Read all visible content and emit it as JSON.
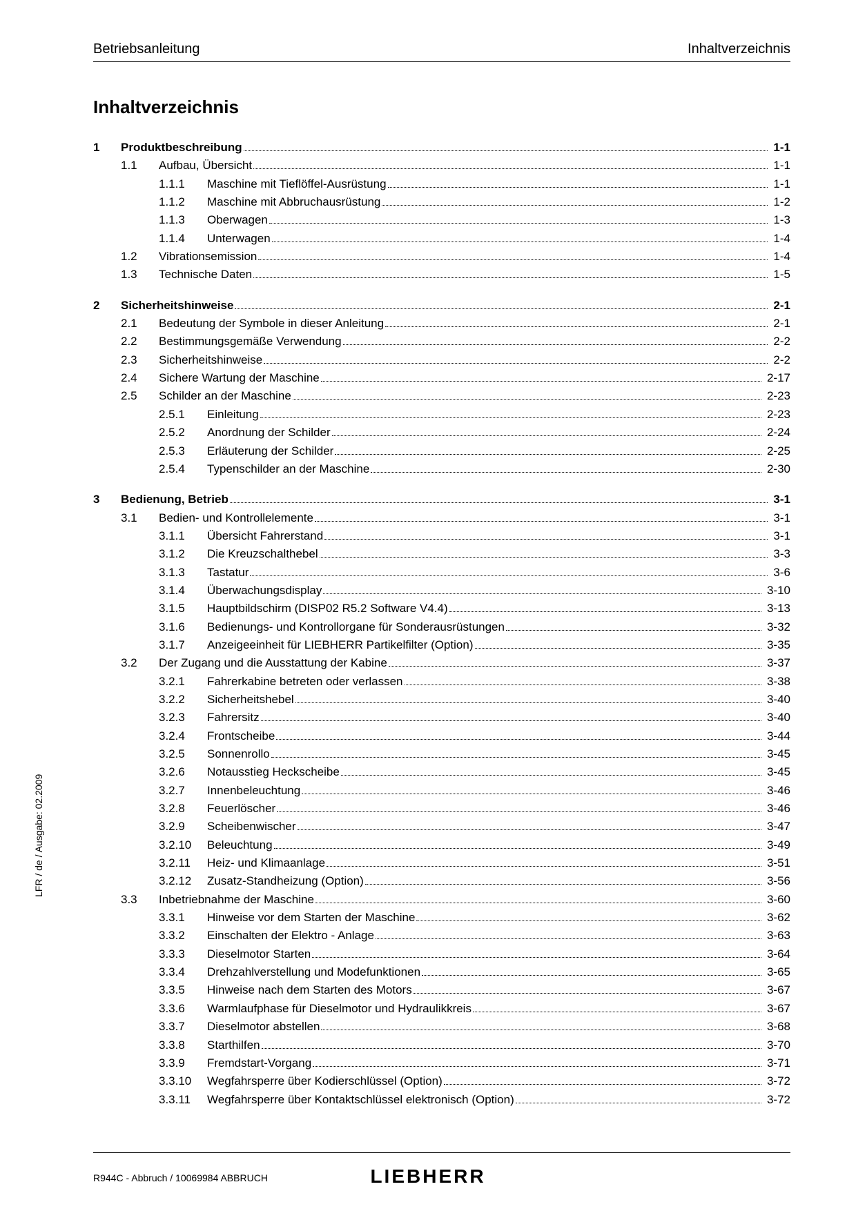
{
  "header": {
    "left": "Betriebsanleitung",
    "right": "Inhaltverzeichnis"
  },
  "title": "Inhaltverzeichnis",
  "side_text": "LFR / de / Ausgabe: 02.2009",
  "footer_text": "R944C - Abbruch / 10069984 ABBRUCH",
  "logo": "LIEBHERR",
  "toc": [
    {
      "level": 1,
      "num": "1",
      "label": "Produktbeschreibung",
      "page": "1-1",
      "bold": true
    },
    {
      "level": 2,
      "num": "1.1",
      "label": "Aufbau, Übersicht",
      "page": "1-1"
    },
    {
      "level": 3,
      "num": "1.1.1",
      "label": "Maschine mit Tieflöffel-Ausrüstung",
      "page": "1-1"
    },
    {
      "level": 3,
      "num": "1.1.2",
      "label": "Maschine mit Abbruchausrüstung",
      "page": "1-2"
    },
    {
      "level": 3,
      "num": "1.1.3",
      "label": "Oberwagen",
      "page": "1-3"
    },
    {
      "level": 3,
      "num": "1.1.4",
      "label": "Unterwagen",
      "page": "1-4"
    },
    {
      "level": 2,
      "num": "1.2",
      "label": "Vibrationsemission",
      "page": "1-4"
    },
    {
      "level": 2,
      "num": "1.3",
      "label": "Technische Daten",
      "page": "1-5"
    },
    {
      "level": 1,
      "num": "2",
      "label": "Sicherheitshinweise",
      "page": "2-1",
      "bold": true,
      "gap": true
    },
    {
      "level": 2,
      "num": "2.1",
      "label": "Bedeutung der Symbole in dieser Anleitung",
      "page": "2-1"
    },
    {
      "level": 2,
      "num": "2.2",
      "label": "Bestimmungsgemäße Verwendung",
      "page": "2-2"
    },
    {
      "level": 2,
      "num": "2.3",
      "label": "Sicherheitshinweise",
      "page": "2-2"
    },
    {
      "level": 2,
      "num": "2.4",
      "label": "Sichere Wartung der Maschine",
      "page": "2-17"
    },
    {
      "level": 2,
      "num": "2.5",
      "label": "Schilder an der Maschine",
      "page": "2-23"
    },
    {
      "level": 3,
      "num": "2.5.1",
      "label": "Einleitung",
      "page": "2-23"
    },
    {
      "level": 3,
      "num": "2.5.2",
      "label": "Anordnung der Schilder",
      "page": "2-24"
    },
    {
      "level": 3,
      "num": "2.5.3",
      "label": "Erläuterung der Schilder",
      "page": "2-25"
    },
    {
      "level": 3,
      "num": "2.5.4",
      "label": "Typenschilder an der Maschine",
      "page": "2-30"
    },
    {
      "level": 1,
      "num": "3",
      "label": "Bedienung, Betrieb",
      "page": "3-1",
      "bold": true,
      "gap": true
    },
    {
      "level": 2,
      "num": "3.1",
      "label": "Bedien- und Kontrollelemente",
      "page": "3-1"
    },
    {
      "level": 3,
      "num": "3.1.1",
      "label": "Übersicht Fahrerstand",
      "page": "3-1"
    },
    {
      "level": 3,
      "num": "3.1.2",
      "label": "Die Kreuzschalthebel",
      "page": "3-3"
    },
    {
      "level": 3,
      "num": "3.1.3",
      "label": "Tastatur",
      "page": "3-6"
    },
    {
      "level": 3,
      "num": "3.1.4",
      "label": "Überwachungsdisplay",
      "page": "3-10"
    },
    {
      "level": 3,
      "num": "3.1.5",
      "label": "Hauptbildschirm (DISP02 R5.2 Software V4.4)",
      "page": "3-13"
    },
    {
      "level": 3,
      "num": "3.1.6",
      "label": "Bedienungs- und Kontrollorgane für Sonderausrüstungen",
      "page": "3-32"
    },
    {
      "level": 3,
      "num": "3.1.7",
      "label": "Anzeigeeinheit für LIEBHERR Partikelfilter (Option)",
      "page": "3-35"
    },
    {
      "level": 2,
      "num": "3.2",
      "label": "Der Zugang und die Ausstattung der Kabine",
      "page": "3-37"
    },
    {
      "level": 3,
      "num": "3.2.1",
      "label": "Fahrerkabine betreten oder verlassen",
      "page": "3-38"
    },
    {
      "level": 3,
      "num": "3.2.2",
      "label": "Sicherheitshebel",
      "page": "3-40"
    },
    {
      "level": 3,
      "num": "3.2.3",
      "label": "Fahrersitz",
      "page": "3-40"
    },
    {
      "level": 3,
      "num": "3.2.4",
      "label": "Frontscheibe",
      "page": "3-44"
    },
    {
      "level": 3,
      "num": "3.2.5",
      "label": "Sonnenrollo",
      "page": "3-45"
    },
    {
      "level": 3,
      "num": "3.2.6",
      "label": "Notausstieg Heckscheibe",
      "page": "3-45"
    },
    {
      "level": 3,
      "num": "3.2.7",
      "label": "Innenbeleuchtung",
      "page": "3-46"
    },
    {
      "level": 3,
      "num": "3.2.8",
      "label": "Feuerlöscher",
      "page": "3-46"
    },
    {
      "level": 3,
      "num": "3.2.9",
      "label": "Scheibenwischer",
      "page": "3-47"
    },
    {
      "level": 3,
      "num": "3.2.10",
      "label": "Beleuchtung",
      "page": "3-49"
    },
    {
      "level": 3,
      "num": "3.2.11",
      "label": "Heiz- und Klimaanlage",
      "page": "3-51"
    },
    {
      "level": 3,
      "num": "3.2.12",
      "label": "Zusatz-Standheizung (Option)",
      "page": "3-56"
    },
    {
      "level": 2,
      "num": "3.3",
      "label": "Inbetriebnahme der Maschine",
      "page": "3-60"
    },
    {
      "level": 3,
      "num": "3.3.1",
      "label": "Hinweise vor dem Starten der Maschine",
      "page": "3-62"
    },
    {
      "level": 3,
      "num": "3.3.2",
      "label": "Einschalten der Elektro - Anlage",
      "page": "3-63"
    },
    {
      "level": 3,
      "num": "3.3.3",
      "label": "Dieselmotor Starten",
      "page": "3-64"
    },
    {
      "level": 3,
      "num": "3.3.4",
      "label": "Drehzahlverstellung und Modefunktionen",
      "page": "3-65"
    },
    {
      "level": 3,
      "num": "3.3.5",
      "label": "Hinweise nach dem Starten des Motors",
      "page": "3-67"
    },
    {
      "level": 3,
      "num": "3.3.6",
      "label": "Warmlaufphase für Dieselmotor und Hydraulikkreis",
      "page": "3-67"
    },
    {
      "level": 3,
      "num": "3.3.7",
      "label": "Dieselmotor abstellen",
      "page": "3-68"
    },
    {
      "level": 3,
      "num": "3.3.8",
      "label": "Starthilfen",
      "page": "3-70"
    },
    {
      "level": 3,
      "num": "3.3.9",
      "label": "Fremdstart-Vorgang",
      "page": "3-71"
    },
    {
      "level": 3,
      "num": "3.3.10",
      "label": "Wegfahrsperre über Kodierschlüssel (Option)",
      "page": "3-72"
    },
    {
      "level": 3,
      "num": "3.3.11",
      "label": "Wegfahrsperre über Kontaktschlüssel elektronisch (Option)",
      "page": "3-72"
    }
  ]
}
